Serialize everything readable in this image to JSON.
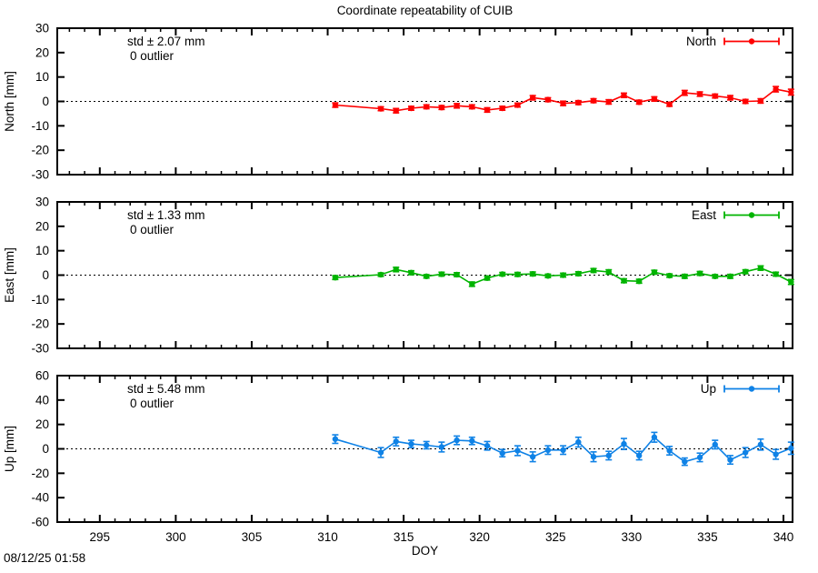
{
  "window": {
    "background": "#ffffff"
  },
  "chart_data": {
    "type": "line",
    "subtype": "points-with-errorbars",
    "title": "Coordinate repeatability of CUIB",
    "xlabel": "DOY",
    "timestamp": "08/12/25 01:58",
    "grid": "dotted-zero-line-only",
    "legend_position": "top-right-inside",
    "xlim": [
      292.2,
      340.6
    ],
    "x_ticks": [
      295,
      300,
      305,
      310,
      315,
      320,
      325,
      330,
      335,
      340
    ],
    "x_minor_tick_step": 1,
    "x": [
      310.5,
      313.5,
      314.5,
      315.5,
      316.5,
      317.5,
      318.5,
      319.5,
      320.5,
      321.5,
      322.5,
      323.5,
      324.5,
      325.5,
      326.5,
      327.5,
      328.5,
      329.5,
      330.5,
      331.5,
      332.5,
      333.5,
      334.5,
      335.5,
      336.5,
      337.5,
      338.5,
      339.5,
      340.5
    ],
    "panels": [
      {
        "id": "north",
        "legend": "North",
        "ylabel": "North [mm]",
        "ylim": [
          -30,
          30
        ],
        "yticks": [
          -30,
          -20,
          -10,
          0,
          10,
          20,
          30
        ],
        "std_label": "std ± 2.07 mm",
        "outlier_label": "0 outlier",
        "color": "#ff0000",
        "values": [
          -1.5,
          -3.0,
          -3.8,
          -2.8,
          -2.2,
          -2.5,
          -1.8,
          -2.2,
          -3.5,
          -2.8,
          -1.5,
          1.5,
          0.7,
          -0.8,
          -0.5,
          0.3,
          -0.2,
          2.5,
          -0.3,
          1.0,
          -1.2,
          3.5,
          3.0,
          2.2,
          1.5,
          0.0,
          0.2,
          5.0,
          3.8
        ],
        "errors": [
          0.9,
          0.8,
          0.9,
          0.8,
          0.8,
          0.8,
          0.9,
          0.8,
          0.9,
          0.8,
          0.8,
          0.9,
          0.8,
          0.9,
          0.8,
          0.8,
          0.9,
          0.9,
          0.8,
          0.9,
          0.8,
          1.0,
          0.9,
          0.8,
          0.9,
          0.8,
          0.9,
          1.1,
          1.2
        ]
      },
      {
        "id": "east",
        "legend": "East",
        "ylabel": "East [mm]",
        "ylim": [
          -30,
          30
        ],
        "yticks": [
          -30,
          -20,
          -10,
          0,
          10,
          20,
          30
        ],
        "std_label": "std ± 1.33 mm",
        "outlier_label": "0 outlier",
        "color": "#00b400",
        "values": [
          -1.0,
          0.2,
          2.3,
          1.0,
          -0.5,
          0.4,
          0.2,
          -3.7,
          -1.2,
          0.4,
          0.3,
          0.5,
          -0.3,
          0.0,
          0.6,
          1.9,
          1.3,
          -2.3,
          -2.5,
          1.2,
          -0.2,
          -0.5,
          0.7,
          -0.5,
          -0.5,
          1.4,
          2.9,
          0.4,
          -2.8
        ],
        "errors": [
          0.8,
          0.7,
          0.9,
          0.8,
          0.7,
          0.8,
          0.8,
          0.9,
          0.8,
          0.7,
          0.8,
          0.8,
          0.7,
          0.8,
          0.8,
          0.8,
          0.9,
          0.8,
          0.8,
          0.8,
          0.7,
          0.8,
          0.8,
          0.7,
          0.8,
          0.8,
          0.9,
          0.8,
          1.0
        ]
      },
      {
        "id": "up",
        "legend": "Up",
        "ylabel": "Up [mm]",
        "ylim": [
          -60,
          60
        ],
        "yticks": [
          -60,
          -40,
          -20,
          0,
          20,
          40,
          60
        ],
        "std_label": "std ± 5.48 mm",
        "outlier_label": "0 outlier",
        "color": "#0f82e6",
        "values": [
          8.0,
          -3.0,
          6.0,
          4.0,
          3.0,
          1.5,
          7.0,
          6.5,
          2.5,
          -3.5,
          -1.5,
          -6.5,
          -1.0,
          -1.0,
          5.5,
          -6.5,
          -5.5,
          4.0,
          -5.5,
          9.5,
          -1.5,
          -10.5,
          -7.0,
          3.5,
          -9.0,
          -3.0,
          3.5,
          -4.5,
          0.5
        ],
        "errors": [
          3.5,
          4.0,
          3.5,
          3.0,
          3.0,
          4.0,
          3.5,
          3.0,
          3.5,
          3.0,
          4.0,
          4.0,
          3.5,
          3.5,
          4.0,
          4.0,
          3.5,
          4.5,
          3.5,
          4.0,
          3.5,
          3.0,
          3.5,
          3.5,
          3.5,
          4.0,
          4.5,
          4.0,
          5.0
        ]
      }
    ]
  }
}
